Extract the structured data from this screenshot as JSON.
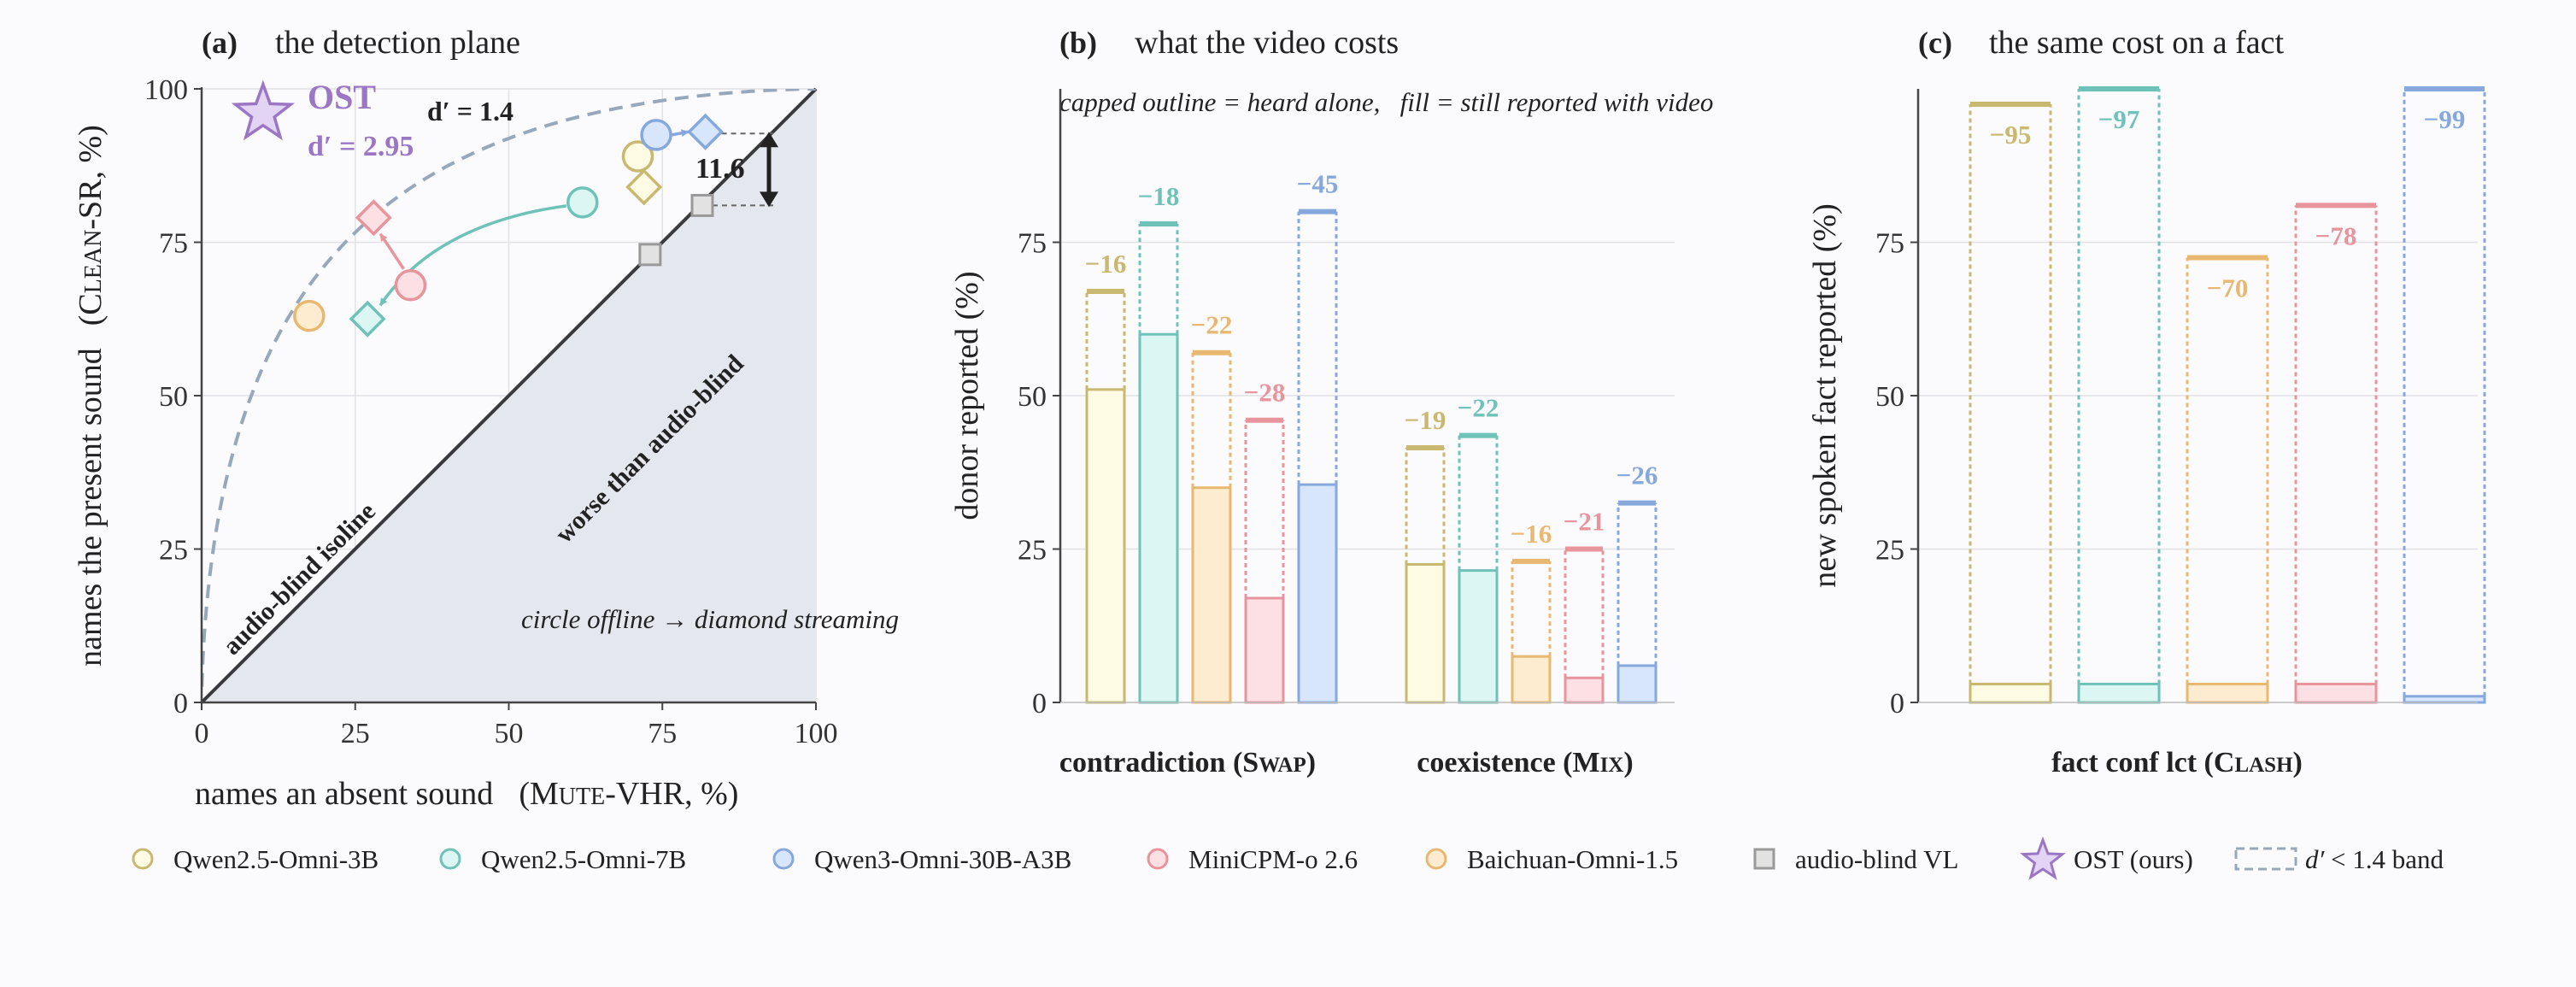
{
  "colors": {
    "q3b": "#c8b870",
    "q7b": "#6fc2b8",
    "q30b": "#86a8dc",
    "minicpm": "#e8949c",
    "baichuan": "#e8b870",
    "blind": "#aaaaaa",
    "ost": "#9a76c4",
    "q3b_fill": "#fefbe4",
    "q7b_fill": "#dcf6f3",
    "q30b_fill": "#d8e6fb",
    "minicpm_fill": "#fde0e3",
    "baichuan_fill": "#fdeccf",
    "blind_fill": "#e2e2e2",
    "ost_fill": "#e3d4f3"
  },
  "legend": [
    {
      "label": "Qwen2.5-Omni-3B",
      "key": "q3b",
      "icon": "circle-outline-icon"
    },
    {
      "label": "Qwen2.5-Omni-7B",
      "key": "q7b",
      "icon": "circle-outline-icon"
    },
    {
      "label": "Qwen3-Omni-30B-A3B",
      "key": "q30b",
      "icon": "circle-outline-icon"
    },
    {
      "label": "MiniCPM-o 2.6",
      "key": "minicpm",
      "icon": "circle-outline-icon"
    },
    {
      "label": "Baichuan-Omni-1.5",
      "key": "baichuan",
      "icon": "circle-outline-icon"
    },
    {
      "label": "audio-blind VL",
      "key": "blind",
      "icon": "square-icon"
    },
    {
      "label": "OST (ours)",
      "key": "ost",
      "icon": "star-icon"
    },
    {
      "label": "< 1.4 band",
      "prefix": "d′",
      "icon": "dashed-box-icon"
    }
  ],
  "chart_data": [
    {
      "type": "scatter",
      "panel": "(a)",
      "title": "the detection plane",
      "xlabel": "names an absent sound",
      "xlabel_unit_pre": "(M",
      "xlabel_unit_sc": "UTE",
      "xlabel_unit_post": "-VHR, %)",
      "ylabel": "names the present sound",
      "ylabel_unit_pre": "(C",
      "ylabel_unit_sc": "LEAN",
      "ylabel_unit_post": "-SR, %)",
      "xlim": [
        0,
        100
      ],
      "ylim": [
        0,
        100
      ],
      "ticks": [
        0,
        25,
        50,
        75,
        100
      ],
      "grid": true,
      "isoline_label": "audio-blind isoline",
      "region_label": "worse than audio-blind",
      "annotation": "circle offline → diamond streaming",
      "band_label": "d′ = 1.4",
      "band_dprime": 1.4,
      "gap_label": "11.6",
      "ost_label": "OST",
      "ost_dprime_label": "d′ = 2.95",
      "points": [
        {
          "model": "q3b",
          "offline": [
            71,
            89
          ],
          "streaming": [
            72,
            84
          ]
        },
        {
          "model": "q7b",
          "offline": [
            62,
            81.5
          ],
          "streaming": [
            27,
            62.5
          ]
        },
        {
          "model": "q30b",
          "offline": [
            74,
            92.5
          ],
          "streaming": [
            82,
            93
          ]
        },
        {
          "model": "minicpm",
          "offline": [
            34,
            68
          ],
          "streaming": [
            28,
            79
          ]
        },
        {
          "model": "baichuan",
          "offline": [
            17.5,
            63
          ]
        },
        {
          "model": "blind",
          "squares": [
            [
              73,
              73
            ],
            [
              81.5,
              81
            ]
          ]
        },
        {
          "model": "ost",
          "star": [
            10,
            96
          ]
        }
      ]
    },
    {
      "type": "bar",
      "panel": "(b)",
      "title": "what the video costs",
      "subtitle": "capped outline = heard alone,   fill = still reported with video",
      "ylabel": "donor reported (%)",
      "ylim": [
        0,
        100
      ],
      "ticks": [
        0,
        25,
        50,
        75
      ],
      "groups": [
        {
          "label_pre": "contradiction (S",
          "label_sc": "WAP",
          "label_post": ")",
          "bars": [
            {
              "model": "q3b",
              "alone": 67,
              "video": 51,
              "delta": "−16"
            },
            {
              "model": "q7b",
              "alone": 78,
              "video": 60,
              "delta": "−18"
            },
            {
              "model": "baichuan",
              "alone": 57,
              "video": 35,
              "delta": "−22"
            },
            {
              "model": "minicpm",
              "alone": 46,
              "video": 17,
              "delta": "−28"
            },
            {
              "model": "q30b",
              "alone": 80,
              "video": 35.5,
              "delta": "−45"
            }
          ]
        },
        {
          "label_pre": "coexistence (M",
          "label_sc": "IX",
          "label_post": ")",
          "bars": [
            {
              "model": "q3b",
              "alone": 41.5,
              "video": 22.5,
              "delta": "−19"
            },
            {
              "model": "q7b",
              "alone": 43.5,
              "video": 21.5,
              "delta": "−22"
            },
            {
              "model": "baichuan",
              "alone": 23,
              "video": 7.5,
              "delta": "−16"
            },
            {
              "model": "minicpm",
              "alone": 25,
              "video": 4,
              "delta": "−21"
            },
            {
              "model": "q30b",
              "alone": 32.5,
              "video": 6,
              "delta": "−26"
            }
          ]
        }
      ]
    },
    {
      "type": "bar",
      "panel": "(c)",
      "title": "the same cost on a fact",
      "ylabel": "new spoken fact reported (%)",
      "ylim": [
        0,
        100
      ],
      "ticks": [
        0,
        25,
        50,
        75
      ],
      "group_label_pre": "fact conf lct (C",
      "group_label_sc": "LASH",
      "group_label_post": ")",
      "bars": [
        {
          "model": "q3b",
          "alone": 97.5,
          "video": 3,
          "delta": "−95"
        },
        {
          "model": "q7b",
          "alone": 100,
          "video": 3,
          "delta": "−97"
        },
        {
          "model": "baichuan",
          "alone": 72.5,
          "video": 3,
          "delta": "−70"
        },
        {
          "model": "minicpm",
          "alone": 81,
          "video": 3,
          "delta": "−78"
        },
        {
          "model": "q30b",
          "alone": 100,
          "video": 1,
          "delta": "−99"
        }
      ]
    }
  ]
}
